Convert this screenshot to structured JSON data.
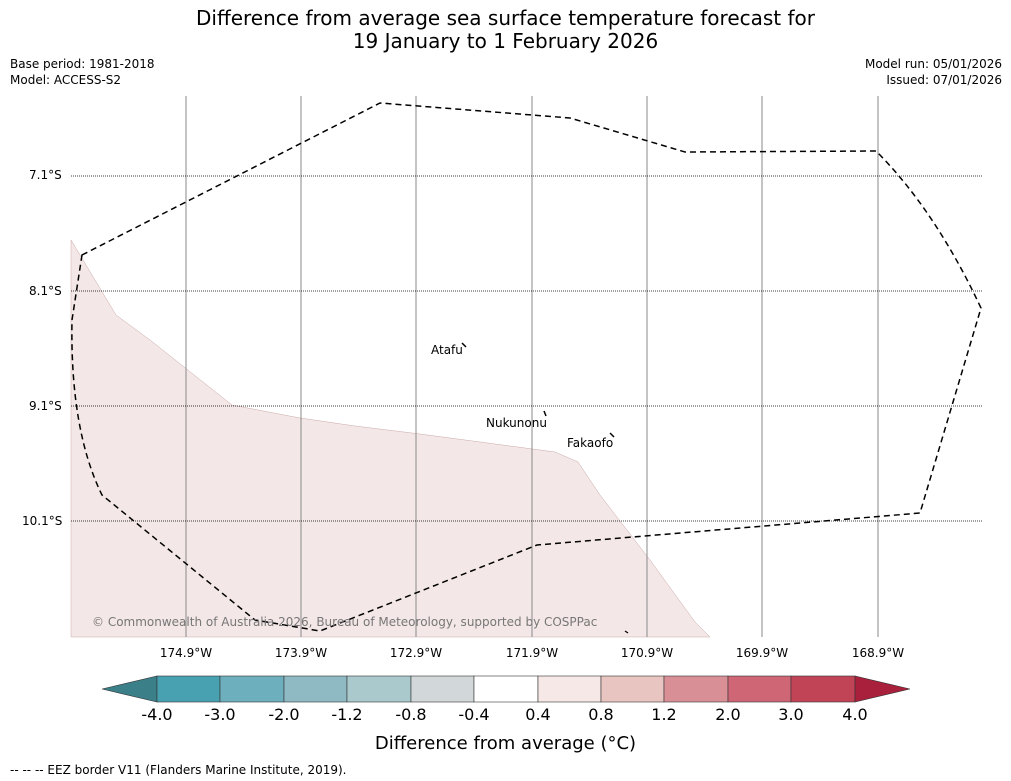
{
  "title_line1": "Difference from average sea surface temperature forecast for",
  "title_line2": "19 January to 1 February 2026",
  "base_period": "Base period: 1981-2018",
  "model": "Model: ACCESS-S2",
  "model_run": "Model run: 05/01/2026",
  "issued": "Issued: 07/01/2026",
  "lat_labels": [
    "7.1°S",
    "8.1°S",
    "9.1°S",
    "10.1°S"
  ],
  "lon_labels": [
    "174.9°W",
    "173.9°W",
    "172.9°W",
    "171.9°W",
    "170.9°W",
    "169.9°W",
    "168.9°W"
  ],
  "places": [
    "Atafu",
    "Nukunonu",
    "Fakaofo"
  ],
  "copyright": "© Commonwealth of Australia 2026, Bureau of Meteorology, supported by COSPPac",
  "colorbar": {
    "ticks": [
      "-4.0",
      "-3.0",
      "-2.0",
      "-1.2",
      "-0.8",
      "-0.4",
      "0.4",
      "0.8",
      "1.2",
      "2.0",
      "3.0",
      "4.0"
    ],
    "label": "Difference from average (°C)",
    "colors": [
      "#3b7f89",
      "#48a1b1",
      "#6dafbd",
      "#8fbac3",
      "#a9c9cd",
      "#d2d7d9",
      "#ffffff",
      "#f6e8e7",
      "#e8c5c1",
      "#d98f96",
      "#cf6675",
      "#c04456",
      "#a8203b"
    ]
  },
  "footer": "--  --  -- EEZ border V11 (Flanders Marine Institute, 2019)."
}
